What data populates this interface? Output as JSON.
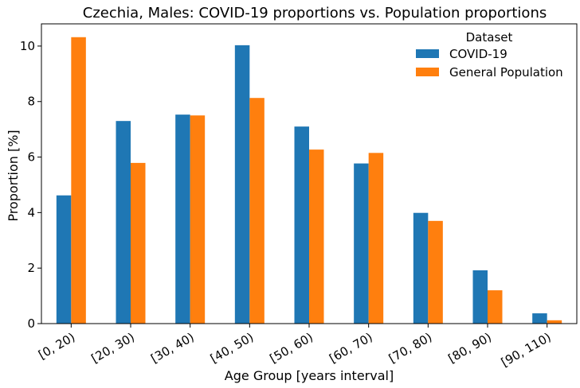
{
  "chart_data": {
    "type": "bar",
    "title": "Czechia, Males: COVID-19 proportions vs. Population proportions",
    "xlabel": "Age Group [years interval]",
    "ylabel": "Proportion [%]",
    "categories": [
      "[0, 20)",
      "[20, 30)",
      "[30, 40)",
      "[40, 50)",
      "[50, 60)",
      "[60, 70)",
      "[70, 80)",
      "[80, 90)",
      "[90, 110)"
    ],
    "series": [
      {
        "name": "COVID-19",
        "color": "#1f77b4",
        "values": [
          4.62,
          7.3,
          7.53,
          10.03,
          7.1,
          5.77,
          3.99,
          1.92,
          0.37
        ]
      },
      {
        "name": "General Population",
        "color": "#ff7f0e",
        "values": [
          10.32,
          5.79,
          7.5,
          8.13,
          6.27,
          6.15,
          3.7,
          1.2,
          0.12
        ]
      }
    ],
    "ylim": [
      0,
      10.8
    ],
    "yticks": [
      0,
      2,
      4,
      6,
      8,
      10
    ],
    "legend": {
      "title": "Dataset",
      "placement": "top-right"
    },
    "grid": false
  }
}
